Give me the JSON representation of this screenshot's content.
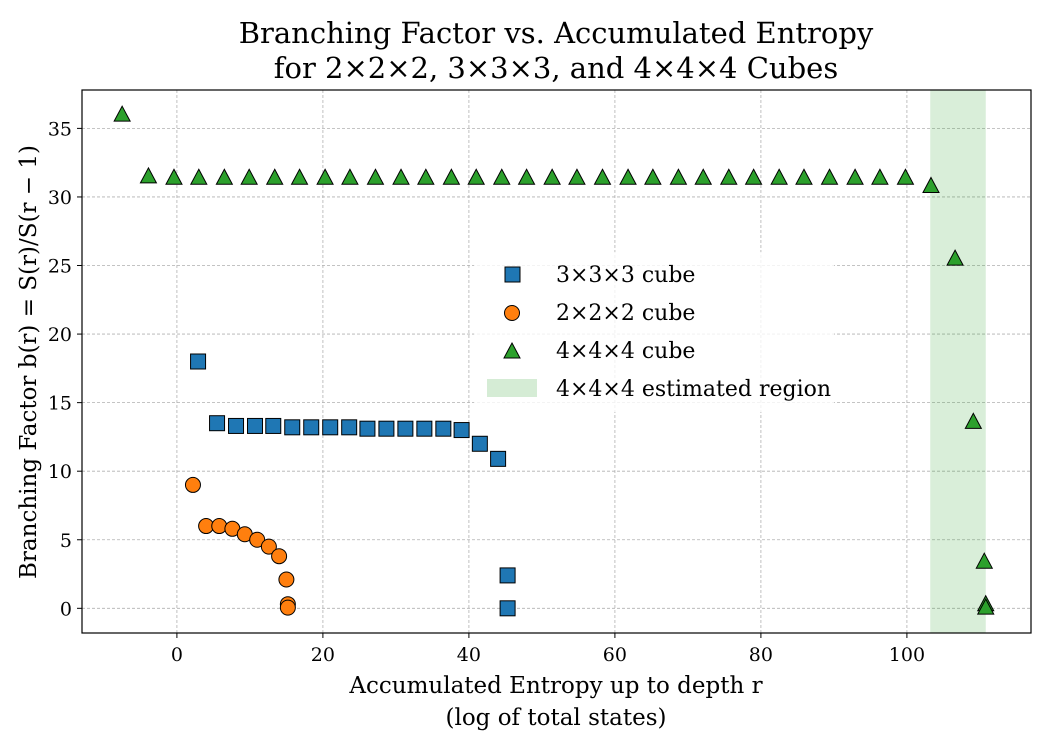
{
  "chart_data": {
    "type": "scatter",
    "title": [
      "Branching Factor vs. Accumulated Entropy",
      "for 2×2×2, 3×3×3, and 4×4×4 Cubes"
    ],
    "xlabel": [
      "Accumulated Entropy up to depth r",
      "(log of total states)"
    ],
    "ylabel": "Branching Factor b(r) = S(r)/S(r − 1)",
    "xlim": [
      -13,
      117
    ],
    "ylim": [
      -1.8,
      37.8
    ],
    "xticks": [
      0,
      20,
      40,
      60,
      80,
      100
    ],
    "yticks": [
      0,
      5,
      10,
      15,
      20,
      25,
      30,
      35
    ],
    "grid": true,
    "legend_position": "center",
    "colors": {
      "cube3": "#1f77b4",
      "cube2": "#ff7f0e",
      "cube4": "#2ca02c",
      "region": "#2ca02c"
    },
    "series": [
      {
        "name": "3×3×3 cube",
        "marker": "square",
        "x": [
          2.9,
          5.5,
          8.1,
          10.7,
          13.2,
          15.8,
          18.4,
          21.0,
          23.6,
          26.1,
          28.7,
          31.3,
          33.9,
          36.5,
          39.0,
          41.5,
          44.0,
          45.3,
          45.3
        ],
        "y": [
          18.0,
          13.5,
          13.3,
          13.3,
          13.3,
          13.2,
          13.2,
          13.2,
          13.2,
          13.1,
          13.1,
          13.1,
          13.1,
          13.1,
          13.0,
          12.0,
          10.9,
          2.4,
          0.0
        ]
      },
      {
        "name": "2×2×2 cube",
        "marker": "circle",
        "x": [
          2.2,
          4.0,
          5.8,
          7.6,
          9.3,
          11.0,
          12.6,
          14.0,
          15.0,
          15.2,
          15.2
        ],
        "y": [
          9.0,
          6.0,
          6.0,
          5.8,
          5.4,
          5.0,
          4.5,
          3.8,
          2.1,
          0.3,
          0.05
        ]
      },
      {
        "name": "4×4×4 cube",
        "marker": "triangle",
        "x": [
          -7.5,
          -3.9,
          -0.4,
          3.0,
          6.5,
          9.9,
          13.4,
          16.8,
          20.3,
          23.7,
          27.2,
          30.7,
          34.1,
          37.6,
          41.0,
          44.5,
          47.9,
          51.4,
          54.8,
          58.3,
          61.8,
          65.2,
          68.7,
          72.1,
          75.6,
          79.0,
          82.5,
          85.9,
          89.4,
          92.9,
          96.3,
          99.8,
          103.3,
          106.6,
          109.1,
          110.6,
          110.8,
          110.8
        ],
        "y": [
          36.0,
          31.5,
          31.4,
          31.4,
          31.4,
          31.4,
          31.4,
          31.4,
          31.4,
          31.4,
          31.4,
          31.4,
          31.4,
          31.4,
          31.4,
          31.4,
          31.4,
          31.4,
          31.4,
          31.4,
          31.4,
          31.4,
          31.4,
          31.4,
          31.4,
          31.4,
          31.4,
          31.4,
          31.4,
          31.4,
          31.4,
          31.4,
          30.8,
          25.5,
          13.6,
          3.4,
          0.3,
          0.05
        ]
      }
    ],
    "shaded_region": {
      "name": "4×4×4 estimated region",
      "xmin": 103.2,
      "xmax": 110.8
    },
    "legend_order": [
      "3×3×3 cube",
      "2×2×2 cube",
      "4×4×4 cube",
      "4×4×4 estimated region"
    ]
  }
}
